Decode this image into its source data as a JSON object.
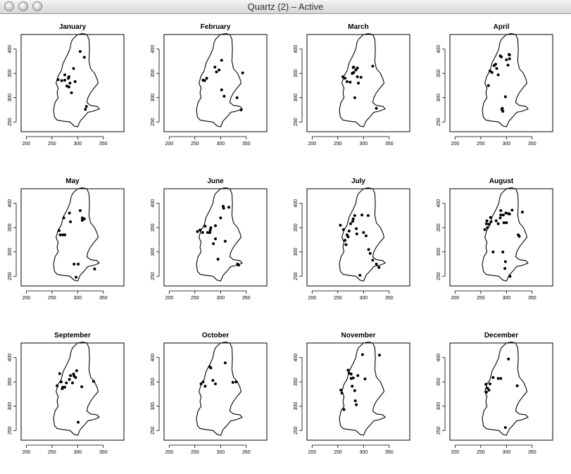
{
  "window": {
    "title": "Quartz (2) – Active",
    "buttons": [
      "close",
      "minimize",
      "zoom"
    ]
  },
  "chart_data": {
    "type": "scatter",
    "layout": "3x4 small multiples",
    "xlim": [
      190,
      390
    ],
    "ylim": [
      230,
      430
    ],
    "x_ticks": [
      200,
      250,
      300,
      350
    ],
    "y_ticks": [
      250,
      300,
      350,
      400
    ],
    "outline": [
      [
        290,
        420
      ],
      [
        300,
        430
      ],
      [
        310,
        432
      ],
      [
        318,
        430
      ],
      [
        322,
        420
      ],
      [
        323,
        400
      ],
      [
        322,
        375
      ],
      [
        325,
        360
      ],
      [
        333,
        350
      ],
      [
        338,
        338
      ],
      [
        340,
        330
      ],
      [
        332,
        320
      ],
      [
        325,
        310
      ],
      [
        320,
        300
      ],
      [
        318,
        290
      ],
      [
        325,
        284
      ],
      [
        338,
        282
      ],
      [
        342,
        277
      ],
      [
        330,
        272
      ],
      [
        320,
        270
      ],
      [
        312,
        260
      ],
      [
        305,
        252
      ],
      [
        300,
        240
      ],
      [
        293,
        242
      ],
      [
        285,
        250
      ],
      [
        270,
        252
      ],
      [
        260,
        254
      ],
      [
        255,
        260
      ],
      [
        253,
        275
      ],
      [
        256,
        290
      ],
      [
        262,
        300
      ],
      [
        260,
        310
      ],
      [
        262,
        320
      ],
      [
        258,
        330
      ],
      [
        262,
        345
      ],
      [
        268,
        355
      ],
      [
        272,
        372
      ],
      [
        280,
        388
      ],
      [
        285,
        400
      ],
      [
        287,
        412
      ]
    ],
    "panels": [
      {
        "title": "January",
        "x": [
          262,
          269,
          275,
          275,
          279,
          282,
          283,
          283,
          285,
          288,
          292,
          295,
          305,
          313,
          315,
          317
        ],
        "y": [
          337,
          335,
          347,
          336,
          324,
          340,
          343,
          322,
          330,
          310,
          360,
          333,
          395,
          383,
          276,
          282
        ]
      },
      {
        "title": "February",
        "x": [
          266,
          269,
          273,
          289,
          292,
          297,
          302,
          302,
          307,
          332,
          340,
          343
        ],
        "y": [
          336,
          335,
          340,
          363,
          353,
          357,
          377,
          316,
          303,
          300,
          275,
          351
        ]
      },
      {
        "title": "March",
        "x": [
          260,
          264,
          268,
          274,
          278,
          280,
          281,
          281,
          283,
          285,
          288,
          288,
          290,
          295,
          318,
          325
        ],
        "y": [
          343,
          340,
          333,
          332,
          350,
          362,
          363,
          352,
          300,
          357,
          361,
          343,
          330,
          342,
          365,
          278
        ]
      },
      {
        "title": "April",
        "x": [
          265,
          268,
          272,
          276,
          279,
          281,
          284,
          288,
          290,
          291,
          292,
          293,
          298,
          300,
          303,
          305,
          306,
          306
        ],
        "y": [
          325,
          355,
          352,
          366,
          369,
          360,
          347,
          386,
          384,
          276,
          278,
          272,
          302,
          378,
          367,
          389,
          388,
          380
        ]
      },
      {
        "title": "May",
        "x": [
          264,
          266,
          271,
          273,
          275,
          284,
          286,
          293,
          297,
          301,
          305,
          309,
          309,
          313,
          333
        ],
        "y": [
          344,
          335,
          335,
          370,
          335,
          380,
          362,
          275,
          248,
          275,
          385,
          370,
          365,
          368,
          265
        ]
      },
      {
        "title": "June",
        "x": [
          255,
          260,
          265,
          270,
          275,
          279,
          280,
          281,
          286,
          290,
          290,
          295,
          300,
          305,
          306,
          309,
          316,
          333,
          335
        ],
        "y": [
          342,
          345,
          340,
          353,
          340,
          340,
          345,
          350,
          317,
          354,
          327,
          285,
          370,
          394,
          390,
          322,
          392,
          275,
          273
        ]
      },
      {
        "title": "July",
        "x": [
          255,
          261,
          264,
          266,
          268,
          270,
          272,
          275,
          279,
          280,
          283,
          286,
          287,
          293,
          297,
          300,
          305,
          309,
          310,
          313,
          318,
          325,
          330
        ],
        "y": [
          355,
          346,
          324,
          315,
          335,
          331,
          343,
          358,
          363,
          368,
          375,
          348,
          337,
          252,
          376,
          340,
          333,
          375,
          305,
          297,
          283,
          275,
          268
        ]
      },
      {
        "title": "August",
        "x": [
          258,
          261,
          262,
          263,
          266,
          269,
          270,
          274,
          280,
          284,
          288,
          289,
          289,
          293,
          294,
          295,
          297,
          298,
          299,
          300,
          304,
          306,
          307,
          311,
          323,
          325,
          331
        ],
        "y": [
          346,
          358,
          364,
          350,
          357,
          371,
          362,
          300,
          364,
          358,
          370,
          376,
          385,
          300,
          376,
          360,
          266,
          280,
          380,
          360,
          379,
          378,
          250,
          386,
          335,
          332,
          382
        ]
      },
      {
        "title": "September",
        "x": [
          260,
          265,
          268,
          270,
          271,
          275,
          278,
          284,
          286,
          290,
          292,
          293,
          296,
          298,
          301,
          308,
          331
        ],
        "y": [
          342,
          367,
          350,
          336,
          339,
          339,
          348,
          355,
          363,
          348,
          366,
          362,
          359,
          373,
          267,
          340,
          351
        ]
      },
      {
        "title": "October",
        "x": [
          262,
          266,
          270,
          279,
          281,
          285,
          290,
          309,
          324,
          330
        ],
        "y": [
          346,
          350,
          341,
          381,
          379,
          353,
          346,
          389,
          349,
          350
        ]
      },
      {
        "title": "November",
        "x": [
          256,
          258,
          262,
          270,
          272,
          276,
          276,
          278,
          280,
          283,
          284,
          286,
          289,
          298,
          303,
          331
        ],
        "y": [
          333,
          327,
          293,
          374,
          368,
          366,
          357,
          341,
          358,
          332,
          311,
          303,
          363,
          406,
          356,
          405
        ]
      },
      {
        "title": "December",
        "x": [
          260,
          261,
          263,
          266,
          268,
          274,
          284,
          289,
          298,
          304,
          321
        ],
        "y": [
          345,
          329,
          337,
          333,
          346,
          359,
          357,
          357,
          256,
          397,
          342
        ]
      }
    ]
  }
}
